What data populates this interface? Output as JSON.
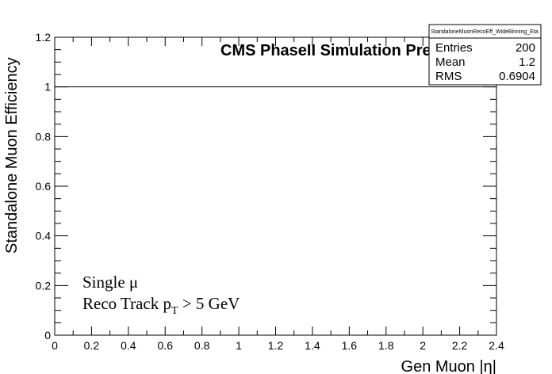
{
  "chart_data": {
    "type": "line",
    "title": "CMS PhaseII Simulation Prelim.",
    "xlabel": "Gen Muon |η|",
    "ylabel": "Standalone Muon Efficiency",
    "xlim": [
      0,
      2.4
    ],
    "ylim": [
      0,
      1.2
    ],
    "x_ticks": [
      "0",
      "0.2",
      "0.4",
      "0.6",
      "0.8",
      "1",
      "1.2",
      "1.4",
      "1.6",
      "1.8",
      "2",
      "2.2",
      "2.4"
    ],
    "y_ticks": [
      "0",
      "0.2",
      "0.4",
      "0.6",
      "0.8",
      "1",
      "1.2"
    ],
    "series": [
      {
        "x": [
          0,
          2.4
        ],
        "values": [
          1,
          1
        ]
      }
    ],
    "annotations": {
      "line1": "Single μ",
      "line2_main": "Reco Track p",
      "line2_sub": "T",
      "line2_rest": " > 5 GeV"
    },
    "stats_box": {
      "title": "StandaloneMuonRecoEff_WideBinning_Eta",
      "rows": [
        {
          "label": "Entries",
          "value": "200"
        },
        {
          "label": "Mean",
          "value": "1.2"
        },
        {
          "label": "RMS",
          "value": "0.6904"
        }
      ]
    },
    "grid": false,
    "color": "#000000"
  }
}
